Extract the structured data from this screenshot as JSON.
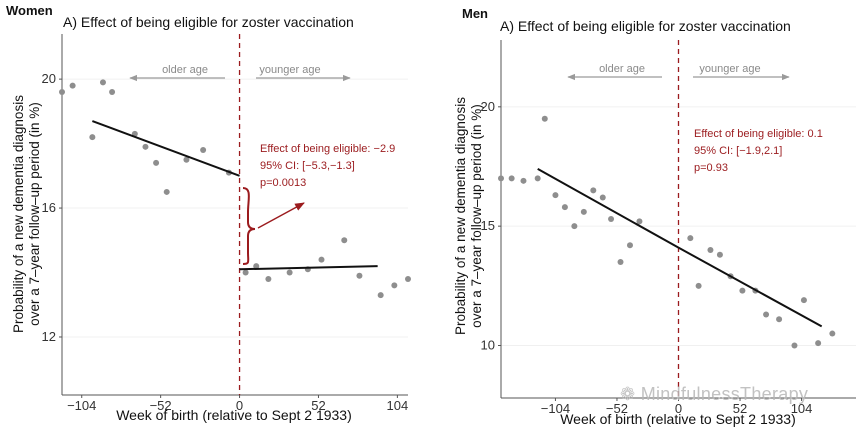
{
  "chart_data": [
    {
      "type": "scatter",
      "panel_label": "Women",
      "title": "A) Effect of being eligible for zoster vaccination",
      "xlabel": "Week of birth (relative to Sept 2 1933)",
      "ylabel_lines": [
        "Probability of a new dementia diagnosis",
        "over a 7–year follow–up period (in %)"
      ],
      "xlim": [
        -117,
        111
      ],
      "ylim": [
        10.2,
        21.4
      ],
      "xticks": [
        -104,
        -52,
        0,
        52,
        104
      ],
      "xtick_labels": [
        "−104",
        "−52",
        "0",
        "52",
        "104"
      ],
      "yticks": [
        12,
        16,
        20
      ],
      "ytick_labels": [
        "12",
        "16",
        "20"
      ],
      "cutoff_x": 0,
      "older_age_label": "older age",
      "younger_age_label": "younger age",
      "points": [
        {
          "x": -117,
          "y": 19.6
        },
        {
          "x": -110,
          "y": 19.8
        },
        {
          "x": -97,
          "y": 18.2
        },
        {
          "x": -90,
          "y": 19.9
        },
        {
          "x": -84,
          "y": 19.6
        },
        {
          "x": -69,
          "y": 18.3
        },
        {
          "x": -62,
          "y": 17.9
        },
        {
          "x": -55,
          "y": 17.4
        },
        {
          "x": -48,
          "y": 16.5
        },
        {
          "x": -35,
          "y": 17.5
        },
        {
          "x": -24,
          "y": 17.8
        },
        {
          "x": -7,
          "y": 17.1
        },
        {
          "x": 4,
          "y": 14.0
        },
        {
          "x": 11,
          "y": 14.2
        },
        {
          "x": 19,
          "y": 13.8
        },
        {
          "x": 33,
          "y": 14.0
        },
        {
          "x": 45,
          "y": 14.1
        },
        {
          "x": 54,
          "y": 14.4
        },
        {
          "x": 69,
          "y": 15.0
        },
        {
          "x": 79,
          "y": 13.9
        },
        {
          "x": 93,
          "y": 13.3
        },
        {
          "x": 102,
          "y": 13.6
        },
        {
          "x": 111,
          "y": 13.8
        }
      ],
      "fit_lines": [
        {
          "x": [
            -97,
            0
          ],
          "y": [
            18.7,
            17.0
          ]
        },
        {
          "x": [
            0,
            91
          ],
          "y": [
            14.1,
            14.2
          ]
        }
      ],
      "annotation_lines": [
        "Effect of being eligible: −2.9",
        "95% CI: [−5.3,−1.3]",
        "p=0.0013"
      ],
      "effect": -2.9,
      "ci": [
        -5.3,
        -1.3
      ],
      "p": 0.0013
    },
    {
      "type": "scatter",
      "panel_label": "Men",
      "title": "A) Effect of being eligible for zoster vaccination",
      "xlabel": "Week of birth (relative to Sept 2 1933)",
      "ylabel_lines": [
        "Probability of a new dementia diagnosis",
        "over a 7–year follow–up period (in %)"
      ],
      "xlim": [
        -150,
        150
      ],
      "ylim": [
        7.8,
        22.8
      ],
      "xticks": [
        -104,
        -52,
        0,
        52,
        104
      ],
      "xtick_labels": [
        "−104",
        "−52",
        "0",
        "52",
        "104"
      ],
      "yticks": [
        10,
        15,
        20
      ],
      "ytick_labels": [
        "10",
        "15",
        "20"
      ],
      "cutoff_x": 0,
      "older_age_label": "older age",
      "younger_age_label": "younger age",
      "points": [
        {
          "x": -150,
          "y": 17.0
        },
        {
          "x": -141,
          "y": 17.0
        },
        {
          "x": -131,
          "y": 16.9
        },
        {
          "x": -119,
          "y": 17.0
        },
        {
          "x": -113,
          "y": 19.5
        },
        {
          "x": -104,
          "y": 16.3
        },
        {
          "x": -96,
          "y": 15.8
        },
        {
          "x": -88,
          "y": 15.0
        },
        {
          "x": -80,
          "y": 15.6
        },
        {
          "x": -72,
          "y": 16.5
        },
        {
          "x": -64,
          "y": 16.2
        },
        {
          "x": -57,
          "y": 15.3
        },
        {
          "x": -49,
          "y": 13.5
        },
        {
          "x": -41,
          "y": 14.2
        },
        {
          "x": -33,
          "y": 15.2
        },
        {
          "x": 10,
          "y": 14.5
        },
        {
          "x": 17,
          "y": 12.5
        },
        {
          "x": 27,
          "y": 14.0
        },
        {
          "x": 35,
          "y": 13.8
        },
        {
          "x": 44,
          "y": 12.9
        },
        {
          "x": 54,
          "y": 12.3
        },
        {
          "x": 65,
          "y": 12.3
        },
        {
          "x": 74,
          "y": 11.3
        },
        {
          "x": 85,
          "y": 11.1
        },
        {
          "x": 98,
          "y": 10.0
        },
        {
          "x": 106,
          "y": 11.9
        },
        {
          "x": 118,
          "y": 10.1
        },
        {
          "x": 130,
          "y": 10.5
        }
      ],
      "fit_lines": [
        {
          "x": [
            -119,
            0
          ],
          "y": [
            17.4,
            14.1
          ]
        },
        {
          "x": [
            0,
            121
          ],
          "y": [
            14.1,
            10.8
          ]
        }
      ],
      "annotation_lines": [
        "Effect of being eligible: 0.1",
        "95% CI: [−1.9,2.1]",
        "p=0.93"
      ],
      "effect": 0.1,
      "ci": [
        -1.9,
        2.1
      ],
      "p": 0.93
    }
  ],
  "watermark_text": "MindfulnessTherapy",
  "colors": {
    "accent_red": "#9b1b1e",
    "point_gray": "#8e8e8e",
    "arrow_gray": "#9a9a9a",
    "axis_gray": "#555555",
    "text": "#111111"
  }
}
